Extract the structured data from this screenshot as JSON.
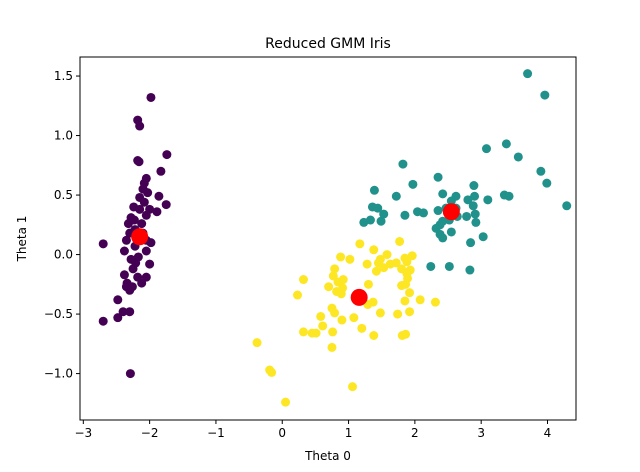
{
  "chart_data": {
    "type": "scatter",
    "title": "Reduced GMM Iris",
    "xlabel": "Theta 0",
    "ylabel": "Theta 1",
    "xlim": [
      -3.05,
      4.43
    ],
    "ylim": [
      -1.39,
      1.66
    ],
    "grid": false,
    "x_ticks": [
      {
        "value": -3,
        "label": "−3"
      },
      {
        "value": -2,
        "label": "−2"
      },
      {
        "value": -1,
        "label": "−1"
      },
      {
        "value": 0,
        "label": "0"
      },
      {
        "value": 1,
        "label": "1"
      },
      {
        "value": 2,
        "label": "2"
      },
      {
        "value": 3,
        "label": "3"
      },
      {
        "value": 4,
        "label": "4"
      }
    ],
    "y_ticks": [
      {
        "value": -1.0,
        "label": "−1.0"
      },
      {
        "value": -0.5,
        "label": "−0.5"
      },
      {
        "value": 0.0,
        "label": "0.0"
      },
      {
        "value": 0.5,
        "label": "0.5"
      },
      {
        "value": 1.0,
        "label": "1.0"
      },
      {
        "value": 1.5,
        "label": "1.5"
      }
    ],
    "colors": {
      "cluster_0": "#440154",
      "cluster_1": "#21918c",
      "cluster_2": "#fde725",
      "means": "#ff0000"
    },
    "series": [
      {
        "color_key": "cluster_0",
        "points": [
          [
            -1.98,
            1.32
          ],
          [
            -2.18,
            1.13
          ],
          [
            -2.15,
            1.08
          ],
          [
            -2.18,
            0.79
          ],
          [
            -2.16,
            0.78
          ],
          [
            -1.74,
            0.84
          ],
          [
            -2.05,
            0.64
          ],
          [
            -2.08,
            0.6
          ],
          [
            -1.83,
            0.7
          ],
          [
            -2.1,
            0.55
          ],
          [
            -2.03,
            0.52
          ],
          [
            -2.15,
            0.48
          ],
          [
            -1.86,
            0.49
          ],
          [
            -2.08,
            0.44
          ],
          [
            -1.75,
            0.42
          ],
          [
            -2.24,
            0.4
          ],
          [
            -2.15,
            0.38
          ],
          [
            -2.0,
            0.38
          ],
          [
            -1.89,
            0.36
          ],
          [
            -2.05,
            0.33
          ],
          [
            -2.28,
            0.31
          ],
          [
            -2.23,
            0.29
          ],
          [
            -2.32,
            0.26
          ],
          [
            -2.12,
            0.26
          ],
          [
            -2.22,
            0.21
          ],
          [
            -2.1,
            0.18
          ],
          [
            -2.3,
            0.18
          ],
          [
            -2.35,
            0.12
          ],
          [
            -2.05,
            0.12
          ],
          [
            -1.98,
            0.1
          ],
          [
            -2.7,
            0.09
          ],
          [
            -2.22,
            0.07
          ],
          [
            -2.38,
            0.03
          ],
          [
            -2.05,
            0.03
          ],
          [
            -2.17,
            -0.02
          ],
          [
            -2.28,
            -0.04
          ],
          [
            -2.21,
            -0.07
          ],
          [
            -2.0,
            -0.08
          ],
          [
            -2.25,
            -0.12
          ],
          [
            -2.38,
            -0.17
          ],
          [
            -2.18,
            -0.19
          ],
          [
            -2.05,
            -0.19
          ],
          [
            -2.34,
            -0.24
          ],
          [
            -2.12,
            -0.24
          ],
          [
            -2.26,
            -0.27
          ],
          [
            -2.35,
            -0.27
          ],
          [
            -2.3,
            -0.3
          ],
          [
            -2.48,
            -0.38
          ],
          [
            -2.4,
            -0.48
          ],
          [
            -2.3,
            -0.48
          ],
          [
            -2.48,
            -0.53
          ],
          [
            -2.7,
            -0.56
          ],
          [
            -2.29,
            -1.0
          ]
        ]
      },
      {
        "color_key": "cluster_1",
        "points": [
          [
            3.7,
            1.52
          ],
          [
            3.96,
            1.34
          ],
          [
            3.38,
            0.93
          ],
          [
            3.08,
            0.89
          ],
          [
            3.56,
            0.82
          ],
          [
            1.82,
            0.76
          ],
          [
            3.9,
            0.7
          ],
          [
            2.35,
            0.65
          ],
          [
            3.99,
            0.6
          ],
          [
            1.97,
            0.59
          ],
          [
            2.89,
            0.58
          ],
          [
            3.35,
            0.5
          ],
          [
            3.42,
            0.49
          ],
          [
            1.39,
            0.54
          ],
          [
            2.42,
            0.51
          ],
          [
            1.72,
            0.49
          ],
          [
            2.62,
            0.49
          ],
          [
            2.9,
            0.49
          ],
          [
            3.1,
            0.46
          ],
          [
            2.8,
            0.46
          ],
          [
            2.55,
            0.45
          ],
          [
            4.29,
            0.41
          ],
          [
            1.36,
            0.4
          ],
          [
            1.44,
            0.39
          ],
          [
            2.88,
            0.41
          ],
          [
            2.47,
            0.39
          ],
          [
            2.62,
            0.39
          ],
          [
            2.35,
            0.37
          ],
          [
            2.04,
            0.36
          ],
          [
            2.13,
            0.35
          ],
          [
            2.91,
            0.34
          ],
          [
            1.53,
            0.34
          ],
          [
            1.85,
            0.33
          ],
          [
            2.78,
            0.32
          ],
          [
            2.64,
            0.32
          ],
          [
            2.52,
            0.29
          ],
          [
            1.33,
            0.29
          ],
          [
            1.49,
            0.28
          ],
          [
            2.42,
            0.28
          ],
          [
            2.92,
            0.27
          ],
          [
            1.23,
            0.27
          ],
          [
            2.38,
            0.25
          ],
          [
            2.32,
            0.22
          ],
          [
            2.55,
            0.19
          ],
          [
            2.38,
            0.17
          ],
          [
            2.42,
            0.14
          ],
          [
            3.03,
            0.15
          ],
          [
            2.84,
            0.1
          ],
          [
            2.24,
            -0.1
          ],
          [
            2.52,
            -0.1
          ],
          [
            2.83,
            -0.13
          ]
        ]
      },
      {
        "color_key": "cluster_2",
        "points": [
          [
            1.17,
            0.09
          ],
          [
            1.77,
            0.11
          ],
          [
            1.38,
            0.04
          ],
          [
            0.88,
            -0.02
          ],
          [
            1.58,
            0.0
          ],
          [
            1.96,
            -0.01
          ],
          [
            1.02,
            -0.04
          ],
          [
            1.85,
            -0.03
          ],
          [
            1.48,
            -0.04
          ],
          [
            1.88,
            -0.06
          ],
          [
            1.28,
            -0.08
          ],
          [
            1.45,
            -0.07
          ],
          [
            1.63,
            -0.08
          ],
          [
            1.72,
            -0.07
          ],
          [
            1.53,
            -0.11
          ],
          [
            1.8,
            -0.12
          ],
          [
            1.93,
            -0.13
          ],
          [
            0.79,
            -0.12
          ],
          [
            1.42,
            -0.14
          ],
          [
            1.88,
            -0.16
          ],
          [
            0.77,
            -0.18
          ],
          [
            1.89,
            -0.2
          ],
          [
            0.32,
            -0.21
          ],
          [
            0.92,
            -0.21
          ],
          [
            0.84,
            -0.23
          ],
          [
            1.3,
            -0.25
          ],
          [
            0.7,
            -0.27
          ],
          [
            0.91,
            -0.28
          ],
          [
            1.8,
            -0.26
          ],
          [
            1.86,
            -0.25
          ],
          [
            0.82,
            -0.31
          ],
          [
            0.23,
            -0.34
          ],
          [
            1.92,
            -0.32
          ],
          [
            0.89,
            -0.33
          ],
          [
            1.85,
            -0.39
          ],
          [
            2.08,
            -0.38
          ],
          [
            1.37,
            -0.4
          ],
          [
            2.31,
            -0.4
          ],
          [
            1.29,
            -0.42
          ],
          [
            0.75,
            -0.45
          ],
          [
            1.92,
            -0.48
          ],
          [
            1.48,
            -0.49
          ],
          [
            0.79,
            -0.49
          ],
          [
            1.74,
            -0.5
          ],
          [
            0.58,
            -0.52
          ],
          [
            1.08,
            -0.53
          ],
          [
            0.9,
            -0.55
          ],
          [
            0.61,
            -0.6
          ],
          [
            1.2,
            -0.62
          ],
          [
            0.32,
            -0.65
          ],
          [
            0.45,
            -0.66
          ],
          [
            0.51,
            -0.66
          ],
          [
            1.86,
            -0.67
          ],
          [
            0.76,
            -0.65
          ],
          [
            1.81,
            -0.68
          ],
          [
            1.38,
            -0.68
          ],
          [
            0.75,
            -0.78
          ],
          [
            -0.38,
            -0.74
          ],
          [
            -0.19,
            -0.97
          ],
          [
            -0.16,
            -0.99
          ],
          [
            1.06,
            -1.11
          ],
          [
            0.05,
            -1.24
          ]
        ]
      }
    ],
    "means": [
      {
        "x": -2.15,
        "y": 0.15
      },
      {
        "x": 2.55,
        "y": 0.36
      },
      {
        "x": 1.16,
        "y": -0.36
      }
    ]
  }
}
